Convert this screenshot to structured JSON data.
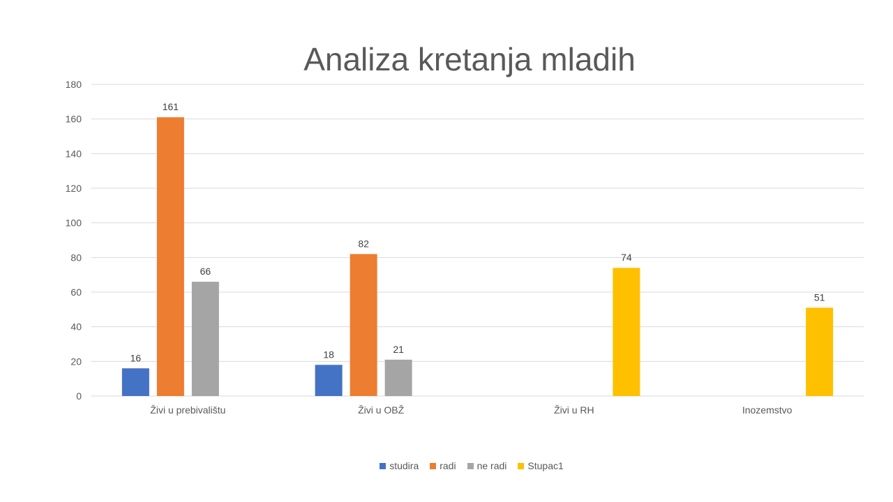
{
  "chart_data": {
    "type": "bar",
    "title": "Analiza kretanja mladih",
    "categories": [
      "Živi u prebivalištu",
      "Živi u OBŽ",
      "Živi u RH",
      "Inozemstvo"
    ],
    "series": [
      {
        "name": "studira",
        "color": "#4472C4",
        "values": [
          16,
          18,
          null,
          null
        ]
      },
      {
        "name": "radi",
        "color": "#ED7D31",
        "values": [
          161,
          82,
          null,
          null
        ]
      },
      {
        "name": "ne radi",
        "color": "#A5A5A5",
        "values": [
          66,
          21,
          null,
          null
        ]
      },
      {
        "name": "Stupac1",
        "color": "#FFC000",
        "values": [
          null,
          null,
          74,
          51
        ]
      }
    ],
    "ylim": [
      0,
      180
    ],
    "yticks": [
      0,
      20,
      40,
      60,
      80,
      100,
      120,
      140,
      160,
      180
    ],
    "grid": true,
    "legend_position": "bottom",
    "data_labels": true
  }
}
